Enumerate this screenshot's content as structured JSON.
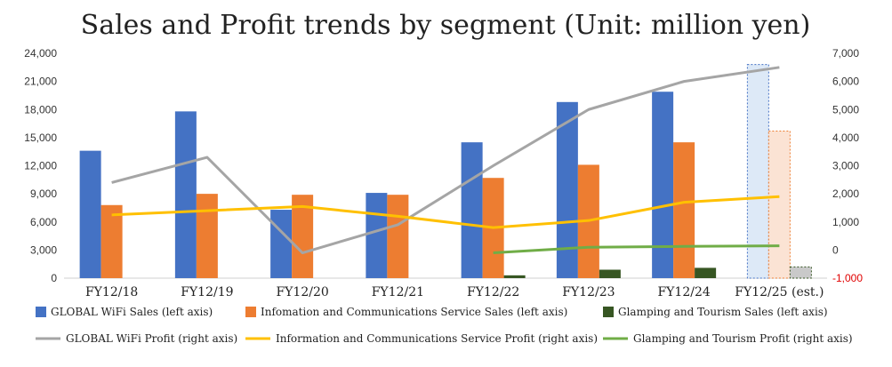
{
  "chart_data": {
    "type": "bar",
    "title": "Sales and Profit trends by segment (Unit: million yen)",
    "categories": [
      "FY12/18",
      "FY12/19",
      "FY12/20",
      "FY12/21",
      "FY12/22",
      "FY12/23",
      "FY12/24",
      "FY12/25 (est.)"
    ],
    "left_axis": {
      "ylim": [
        0,
        24000
      ],
      "ticks": [
        "0",
        "3,000",
        "6,000",
        "9,000",
        "12,000",
        "15,000",
        "18,000",
        "21,000",
        "24,000"
      ]
    },
    "right_axis": {
      "ylim": [
        -1000,
        7000
      ],
      "ticks": [
        "-1,000",
        "0",
        "1,000",
        "2,000",
        "3,000",
        "4,000",
        "5,000",
        "6,000",
        "7,000"
      ]
    },
    "bar_series": [
      {
        "name": "GLOBAL WiFi Sales (left axis)",
        "color": "#4472c4",
        "values": [
          13600,
          17800,
          7300,
          9100,
          14500,
          18800,
          19900,
          22800
        ]
      },
      {
        "name": "Infomation and Communications Service Sales (left axis)",
        "color": "#ed7d31",
        "values": [
          7800,
          9000,
          8900,
          8900,
          10700,
          12100,
          14500,
          15700
        ]
      },
      {
        "name": "Glamping and Tourism Sales (left axis)",
        "color": "#375623",
        "values": [
          null,
          null,
          null,
          null,
          300,
          900,
          1100,
          1200
        ]
      }
    ],
    "line_series": [
      {
        "name": "GLOBAL WiFi Profit (right axis)",
        "color": "#a5a5a5",
        "values": [
          2400,
          3300,
          -100,
          900,
          3000,
          5000,
          6000,
          6500
        ]
      },
      {
        "name": "Information and Communications Service Profit (right axis)",
        "color": "#ffc000",
        "values": [
          1250,
          1400,
          1550,
          1200,
          800,
          1050,
          1700,
          1900
        ]
      },
      {
        "name": "Glamping and Tourism Profit (right axis)",
        "color": "#70ad47",
        "values": [
          null,
          null,
          null,
          null,
          -100,
          100,
          130,
          150
        ]
      }
    ],
    "estimate_category_index": 7,
    "estimate_fill_colors": [
      "#dde9f7",
      "#fbe3d4",
      "#c9c9c9"
    ],
    "grid": false,
    "legend_position": "bottom"
  }
}
